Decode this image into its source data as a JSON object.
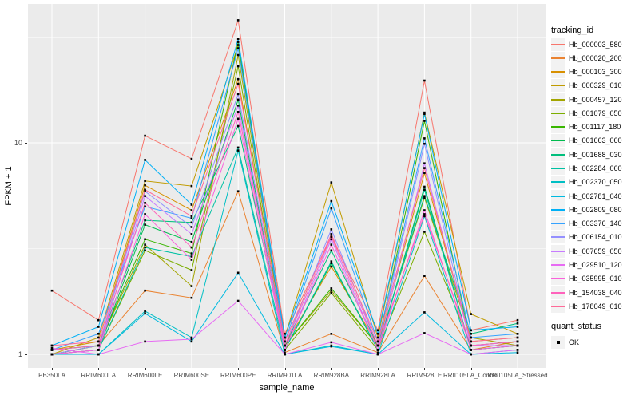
{
  "figure": {
    "background": "#FFFFFF",
    "panel_background": "#EBEBEB",
    "gridline_color": "#FFFFFF",
    "point_color": "#000000",
    "tick_label_color": "#4D4D4D",
    "axis_title_color": "#000000"
  },
  "chart_data": {
    "type": "line",
    "title": "",
    "xlabel": "sample_name",
    "ylabel": "FPKM + 1",
    "y_scale": "log10",
    "ylim": [
      0.9,
      45
    ],
    "y_ticks": [
      "1",
      "10"
    ],
    "y_tick_values": [
      1,
      10
    ],
    "y_minor_gridline_values": [
      3.162,
      31.62
    ],
    "grid": true,
    "legend_position": "right",
    "marker": "black-square-point",
    "categories": [
      "PB350LA",
      "RRIM600LA",
      "RRIM600LE",
      "RRIM600SE",
      "RRIM600PE",
      "RRIM901LA",
      "RRIM928BA",
      "RRIM928LA",
      "RRIM928LE",
      "RRII105LA_Control",
      "RRII105LA_Stressed"
    ],
    "series": [
      {
        "name": "Hb_000003_580",
        "color": "#F8766D",
        "values": [
          2.0,
          1.45,
          10.8,
          8.4,
          38.0,
          1.25,
          3.6,
          1.3,
          19.7,
          1.3,
          1.45
        ]
      },
      {
        "name": "Hb_000020_200",
        "color": "#EA8331",
        "values": [
          1.0,
          1.1,
          2.0,
          1.85,
          5.9,
          1.02,
          1.25,
          1.02,
          2.35,
          1.05,
          1.15
        ]
      },
      {
        "name": "Hb_000103_300",
        "color": "#D89000",
        "values": [
          1.05,
          1.15,
          6.3,
          4.8,
          20.0,
          1.1,
          2.6,
          1.1,
          7.2,
          1.15,
          1.2
        ]
      },
      {
        "name": "Hb_000329_010",
        "color": "#C09B00",
        "values": [
          1.0,
          1.2,
          6.6,
          6.25,
          29.0,
          1.2,
          6.5,
          1.2,
          13.9,
          1.55,
          1.25
        ]
      },
      {
        "name": "Hb_000457_120",
        "color": "#A3A500",
        "values": [
          1.05,
          1.1,
          3.3,
          2.1,
          26.0,
          1.1,
          2.0,
          1.1,
          5.5,
          1.2,
          1.1
        ]
      },
      {
        "name": "Hb_001079_050",
        "color": "#7CAE00",
        "values": [
          1.0,
          1.05,
          3.1,
          2.5,
          23.0,
          1.05,
          1.95,
          1.05,
          3.8,
          1.1,
          1.1
        ]
      },
      {
        "name": "Hb_001117_180",
        "color": "#39B600",
        "values": [
          1.0,
          1.1,
          3.5,
          3.0,
          30.0,
          1.1,
          2.05,
          1.1,
          12.7,
          1.1,
          1.15
        ]
      },
      {
        "name": "Hb_001663_060",
        "color": "#00BB4E",
        "values": [
          1.0,
          1.05,
          4.1,
          3.4,
          16.0,
          1.05,
          2.7,
          1.05,
          6.2,
          1.05,
          1.1
        ]
      },
      {
        "name": "Hb_001688_030",
        "color": "#00BF7D",
        "values": [
          1.05,
          1.1,
          4.3,
          4.2,
          12.0,
          1.1,
          3.1,
          1.1,
          5.6,
          1.25,
          1.4
        ]
      },
      {
        "name": "Hb_002284_060",
        "color": "#00C1A3",
        "values": [
          1.0,
          1.05,
          3.2,
          2.9,
          9.5,
          1.05,
          2.75,
          1.05,
          6.0,
          1.05,
          1.1
        ]
      },
      {
        "name": "Hb_002370_050",
        "color": "#00BFC4",
        "values": [
          1.0,
          1.0,
          1.6,
          1.2,
          9.2,
          1.0,
          1.1,
          1.0,
          4.5,
          1.0,
          1.05
        ]
      },
      {
        "name": "Hb_002781_040",
        "color": "#00BAE0",
        "values": [
          1.0,
          1.0,
          1.56,
          1.15,
          2.43,
          1.0,
          1.09,
          1.0,
          1.58,
          1.0,
          1.02
        ]
      },
      {
        "name": "Hb_002809_080",
        "color": "#00B0F6",
        "values": [
          1.1,
          1.35,
          8.3,
          5.1,
          31.0,
          1.2,
          5.3,
          1.25,
          13.7,
          1.3,
          1.35
        ]
      },
      {
        "name": "Hb_003376_140",
        "color": "#35A2FF",
        "values": [
          1.05,
          1.25,
          5.0,
          4.4,
          28.0,
          1.15,
          4.9,
          1.15,
          10.5,
          1.2,
          1.25
        ]
      },
      {
        "name": "Hb_006154_010",
        "color": "#9590FF",
        "values": [
          1.0,
          1.1,
          5.9,
          4.0,
          17.0,
          1.1,
          3.9,
          1.1,
          9.9,
          1.1,
          1.15
        ]
      },
      {
        "name": "Hb_007659_050",
        "color": "#C77CFF",
        "values": [
          1.0,
          1.05,
          5.6,
          3.7,
          15.0,
          1.05,
          3.5,
          1.05,
          8.0,
          1.1,
          1.1
        ]
      },
      {
        "name": "Hb_029510_120",
        "color": "#E76BF3",
        "values": [
          1.07,
          1.0,
          1.15,
          1.18,
          1.79,
          1.0,
          1.14,
          1.0,
          1.26,
          1.0,
          1.05
        ]
      },
      {
        "name": "Hb_035995_010",
        "color": "#FA62DB",
        "values": [
          1.0,
          1.05,
          4.6,
          2.8,
          13.0,
          1.05,
          3.3,
          1.05,
          4.8,
          1.05,
          1.1
        ]
      },
      {
        "name": "Hb_154038_040",
        "color": "#FF62BC",
        "values": [
          1.05,
          1.1,
          5.2,
          3.2,
          14.0,
          1.1,
          3.6,
          1.1,
          4.6,
          1.1,
          1.15
        ]
      },
      {
        "name": "Hb_178049_010",
        "color": "#FF6A98",
        "values": [
          1.1,
          1.15,
          6.0,
          4.5,
          19.0,
          1.15,
          3.7,
          1.15,
          7.6,
          1.15,
          1.2
        ]
      }
    ]
  },
  "legends": {
    "tracking": {
      "title": "tracking_id"
    },
    "quant": {
      "title": "quant_status",
      "items": [
        {
          "label": "OK",
          "symbol": "black-square-point"
        }
      ]
    }
  }
}
